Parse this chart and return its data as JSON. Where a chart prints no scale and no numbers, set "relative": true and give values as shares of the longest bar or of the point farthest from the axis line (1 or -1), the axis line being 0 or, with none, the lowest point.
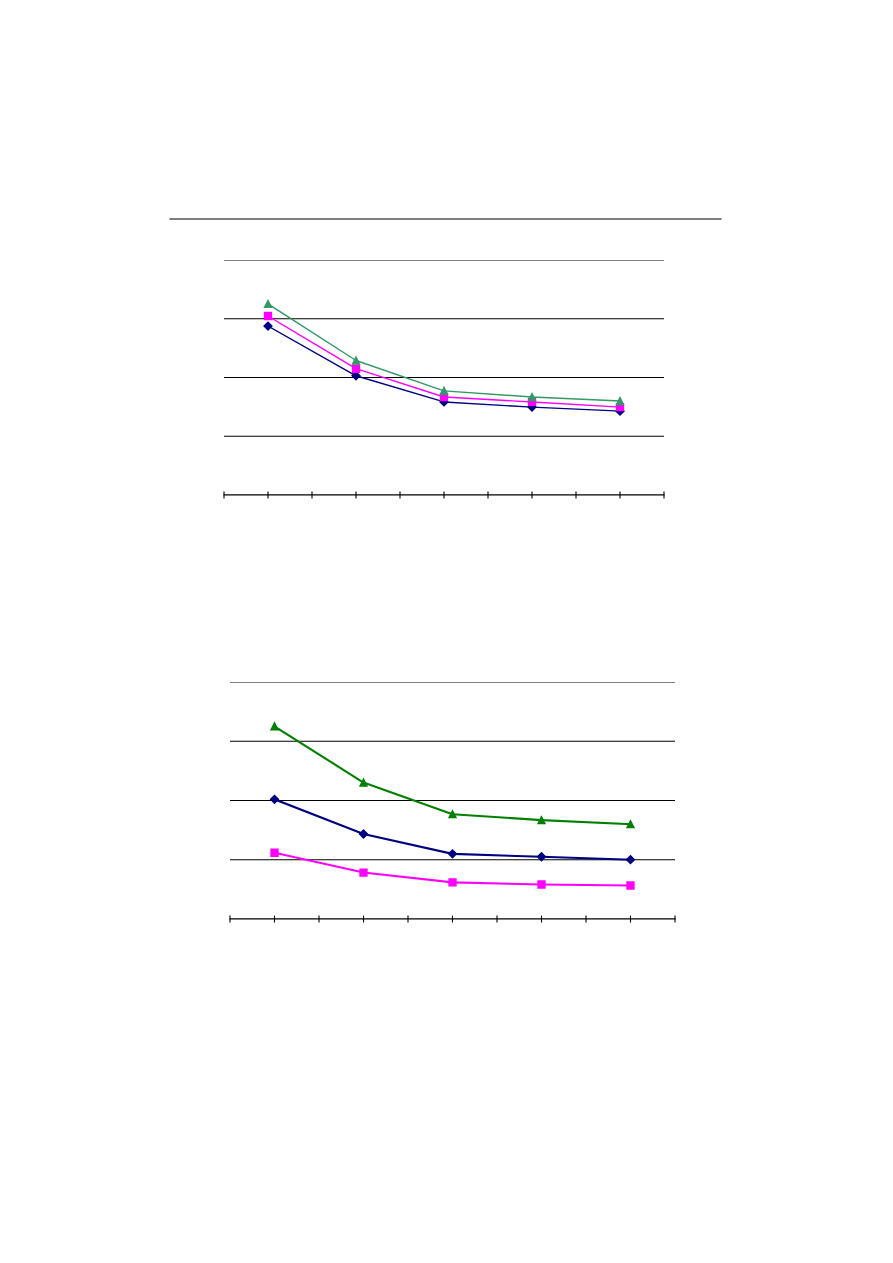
{
  "chart_data": [
    {
      "type": "line",
      "relative": true,
      "grid": "y",
      "categories": [
        null,
        null,
        null,
        null,
        null
      ],
      "series": [
        {
          "color": "#000080",
          "marker": "diamond",
          "values": [
            0.884,
            0.624,
            0.487,
            0.46,
            0.439
          ]
        },
        {
          "color": "#ff00ff",
          "marker": "square",
          "values": [
            0.937,
            0.661,
            0.513,
            0.487,
            0.46
          ]
        },
        {
          "color": "#339966",
          "marker": "triangle",
          "values": [
            1,
            0.704,
            0.545,
            0.513,
            0.492
          ]
        }
      ]
    },
    {
      "type": "line",
      "relative": true,
      "grid": "y",
      "categories": [
        null,
        null,
        null,
        null,
        null
      ],
      "series": [
        {
          "color": "#000080",
          "marker": "diamond",
          "values": [
            0.621,
            0.441,
            0.338,
            0.323,
            0.308
          ]
        },
        {
          "color": "#ff00ff",
          "marker": "square",
          "values": [
            0.344,
            0.241,
            0.19,
            0.179,
            0.174
          ]
        },
        {
          "color": "#008000",
          "marker": "triangle",
          "values": [
            1,
            0.708,
            0.544,
            0.513,
            0.492
          ]
        }
      ]
    }
  ]
}
